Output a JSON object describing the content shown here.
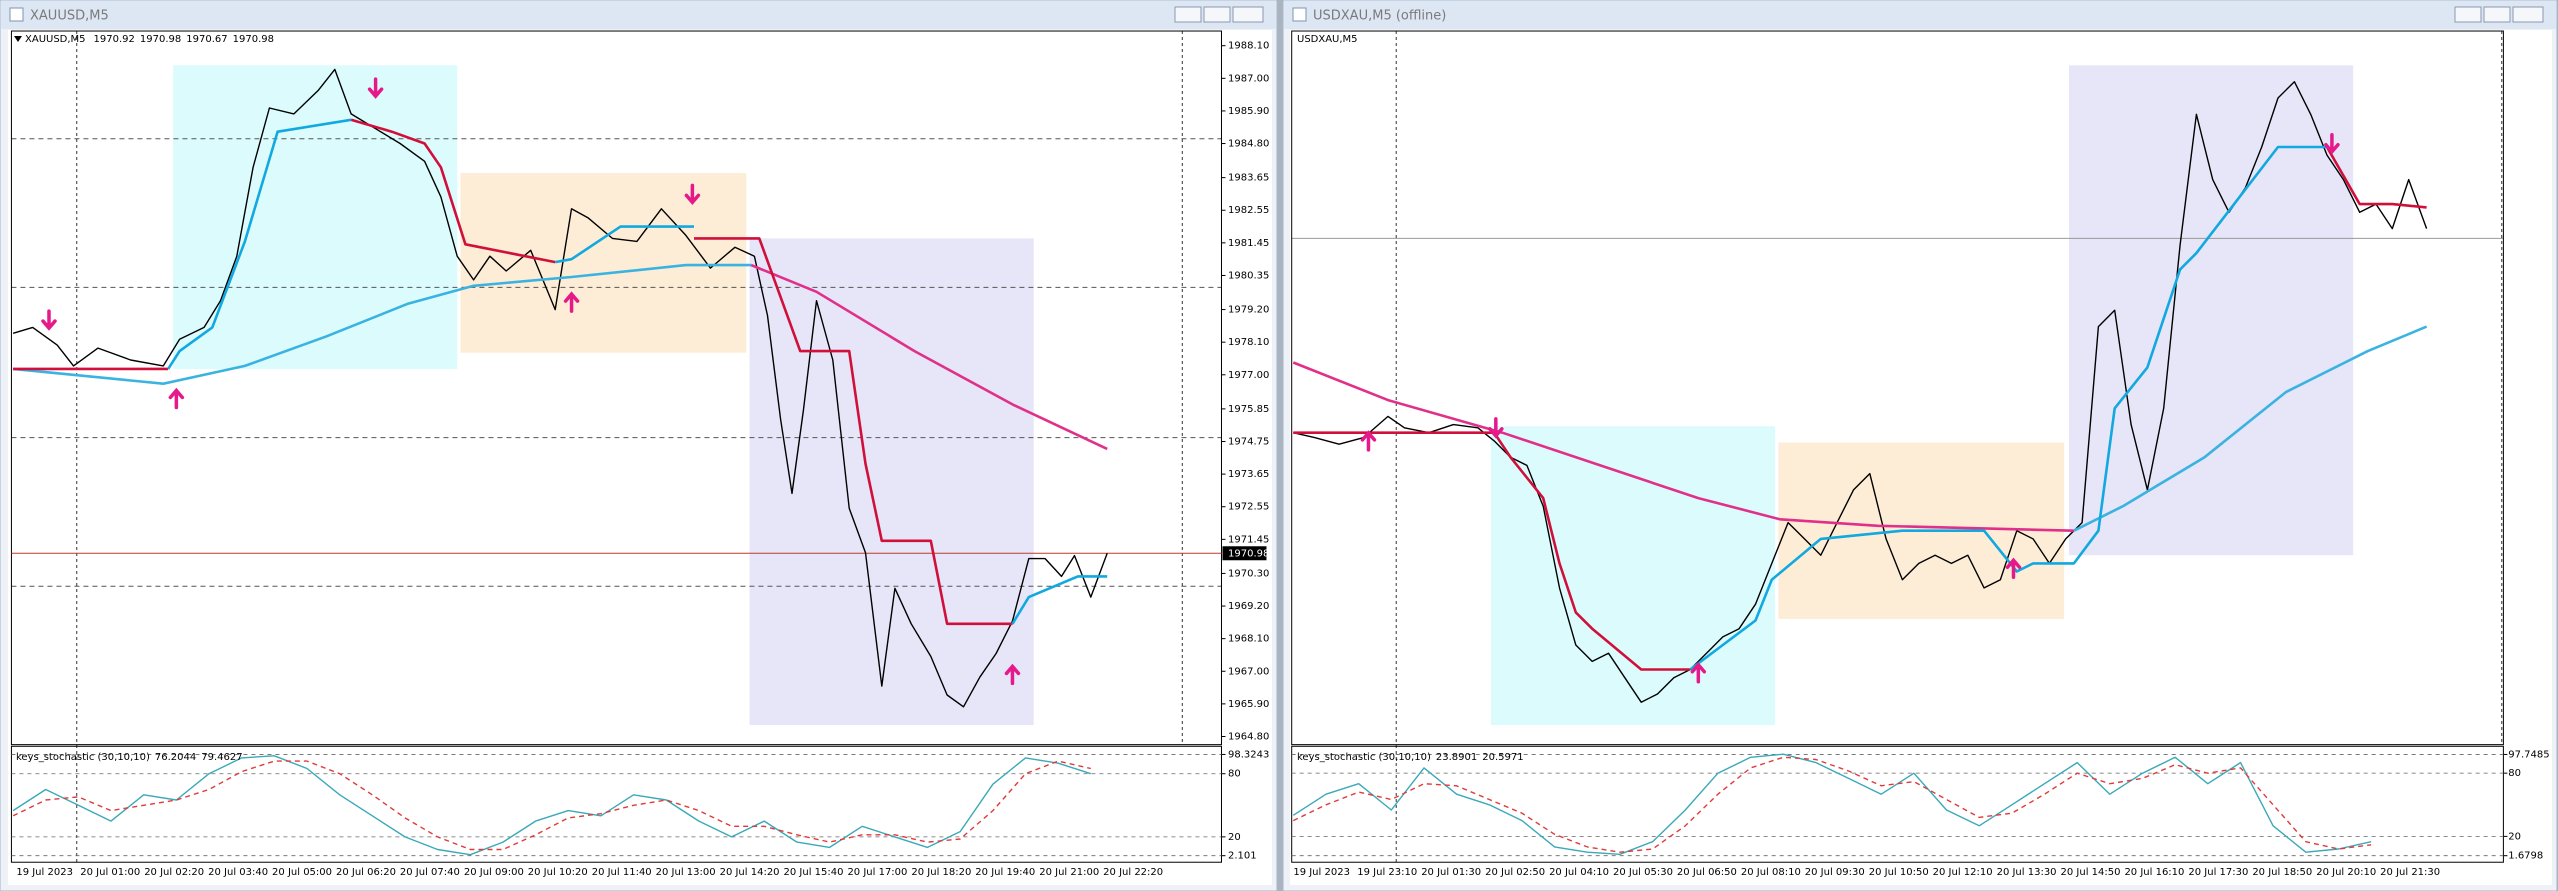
{
  "windows": [
    {
      "title": "XAUUSD,M5"
    },
    {
      "title": "USDXAU,M5 (offline)"
    }
  ],
  "chart_data": [
    {
      "type": "line",
      "symbol": "XAUUSD,M5",
      "ohlc": [
        1970.92,
        1970.98,
        1970.67,
        1970.98
      ],
      "last_price": 1970.98,
      "xlim": [
        0,
        740
      ],
      "ylim": [
        1964.58,
        1988.54
      ],
      "grid": false,
      "yticks": [
        {
          "value": 1988.1,
          "label": "1988.10"
        },
        {
          "value": 1987,
          "label": "1987.00"
        },
        {
          "value": 1985.9,
          "label": "1985.90"
        },
        {
          "value": 1984.8,
          "label": "1984.80"
        },
        {
          "value": 1983.65,
          "label": "1983.65"
        },
        {
          "value": 1982.55,
          "label": "1982.55"
        },
        {
          "value": 1981.45,
          "label": "1981.45"
        },
        {
          "value": 1980.35,
          "label": "1980.35"
        },
        {
          "value": 1979.2,
          "label": "1979.20"
        },
        {
          "value": 1978.1,
          "label": "1978.10"
        },
        {
          "value": 1977,
          "label": "1977.00"
        },
        {
          "value": 1975.85,
          "label": "1975.85"
        },
        {
          "value": 1974.75,
          "label": "1974.75"
        },
        {
          "value": 1973.65,
          "label": "1973.65"
        },
        {
          "value": 1972.55,
          "label": "1972.55"
        },
        {
          "value": 1971.45,
          "label": "1971.45"
        },
        {
          "value": 1970.3,
          "label": "1970.30"
        },
        {
          "value": 1969.2,
          "label": "1969.20"
        },
        {
          "value": 1968.1,
          "label": "1968.10"
        },
        {
          "value": 1967,
          "label": "1967.00"
        },
        {
          "value": 1965.9,
          "label": "1965.90"
        },
        {
          "value": 1964.8,
          "label": "1964.80"
        }
      ],
      "series": [
        {
          "color": "#000000",
          "x": [
            0,
            12,
            27,
            37,
            52,
            72,
            92,
            102,
            117,
            127,
            137,
            147,
            157,
            172,
            187,
            197,
            207,
            222,
            237,
            252,
            262,
            272,
            282,
            292,
            302,
            317,
            332,
            342,
            352,
            367,
            382,
            397,
            412,
            427,
            442,
            454,
            462,
            470,
            477,
            484,
            492,
            502,
            512,
            522,
            532,
            540,
            550,
            562,
            572,
            582,
            592,
            602,
            612,
            622,
            632,
            642,
            650,
            660,
            670
          ],
          "values": [
            1978.4,
            1978.6,
            1978.0,
            1977.3,
            1977.9,
            1977.5,
            1977.3,
            1978.2,
            1978.6,
            1979.5,
            1981,
            1984,
            1986,
            1985.8,
            1986.6,
            1987.3,
            1985.8,
            1985.3,
            1984.8,
            1984.2,
            1983,
            1981,
            1980.2,
            1981,
            1980.5,
            1981.2,
            1979.2,
            1982.6,
            1982.3,
            1981.6,
            1981.5,
            1982.6,
            1981.7,
            1980.6,
            1981.3,
            1981.0,
            1979,
            1975.5,
            1973,
            1975.8,
            1979.5,
            1977.5,
            1972.5,
            1971,
            1966.5,
            1969.8,
            1968.6,
            1967.5,
            1966.2,
            1965.8,
            1966.8,
            1967.6,
            1968.7,
            1970.8,
            1970.8,
            1970.2,
            1970.9,
            1969.5,
            1970.98
          ]
        },
        {
          "color": "#3bb3e0",
          "x": [
            0,
            92,
            142,
            192,
            242,
            282,
            342,
            412,
            452
          ],
          "values": [
            1977.2,
            1976.7,
            1977.3,
            1978.3,
            1979.4,
            1980.0,
            1980.3,
            1980.7,
            1980.7
          ]
        },
        {
          "color": "#e0308a",
          "x": [
            452,
            492,
            552,
            612,
            670
          ],
          "values": [
            1980.7,
            1979.8,
            1977.8,
            1976.0,
            1974.5
          ]
        },
        {
          "color": "#d0103a",
          "x": [
            0,
            95,
            96,
            207,
            232,
            252,
            262,
            277,
            332,
            333,
            417,
            457,
            482,
            512,
            522,
            532,
            562,
            572,
            612
          ],
          "values": [
            1977.2,
            1977.2,
            null,
            1985.6,
            1985.2,
            1984.8,
            1984,
            1981.4,
            1980.8,
            null,
            1981.6,
            1981.6,
            1977.8,
            1977.8,
            1974,
            1971.4,
            1971.4,
            1968.6,
            1968.6
          ]
        },
        {
          "color": "#12a8e0",
          "x": [
            95,
            102,
            122,
            142,
            162,
            207,
            208,
            332,
            342,
            372,
            417,
            418,
            612,
            622,
            652,
            670
          ],
          "values": [
            1977.2,
            1977.8,
            1978.6,
            1981.5,
            1985.2,
            1985.6,
            null,
            1980.8,
            1980.9,
            1982,
            1982,
            null,
            1968.6,
            1969.5,
            1970.2,
            1970.2
          ]
        }
      ]
    },
    {
      "type": "line",
      "indicator": "keys_stochastic (30,10,10)",
      "last_values": [
        76.2044,
        79.4627
      ],
      "xlim": [
        0,
        740
      ],
      "ylim": [
        2.101,
        98.3243
      ],
      "yticks": [
        98.3243,
        80,
        20,
        2.101
      ],
      "grid": true,
      "time_labels": [
        "19 Jul 2023",
        "20 Jul 01:00",
        "20 Jul 02:20",
        "20 Jul 03:40",
        "20 Jul 05:00",
        "20 Jul 06:20",
        "20 Jul 07:40",
        "20 Jul 09:00",
        "20 Jul 10:20",
        "20 Jul 11:40",
        "20 Jul 13:00",
        "20 Jul 14:20",
        "20 Jul 15:40",
        "20 Jul 17:00",
        "20 Jul 18:20",
        "20 Jul 19:40",
        "20 Jul 21:00",
        "20 Jul 22:20"
      ],
      "series": [
        {
          "color": "#3aa9b8",
          "x": [
            0,
            20,
            40,
            60,
            80,
            100,
            120,
            140,
            160,
            180,
            200,
            220,
            240,
            260,
            280,
            300,
            320,
            340,
            360,
            380,
            400,
            420,
            440,
            460,
            480,
            500,
            520,
            540,
            560,
            580,
            600,
            620,
            640,
            660
          ],
          "values": [
            45,
            65,
            50,
            35,
            60,
            55,
            80,
            95,
            97,
            85,
            60,
            40,
            20,
            8,
            3,
            15,
            35,
            45,
            40,
            60,
            55,
            35,
            20,
            35,
            15,
            10,
            30,
            20,
            10,
            25,
            70,
            95,
            90,
            80
          ]
        },
        {
          "color": "#e03a3a",
          "dashed": true,
          "x": [
            0,
            20,
            40,
            60,
            80,
            100,
            120,
            140,
            160,
            180,
            200,
            220,
            240,
            260,
            280,
            300,
            320,
            340,
            360,
            380,
            400,
            420,
            440,
            460,
            480,
            500,
            520,
            540,
            560,
            580,
            600,
            620,
            640,
            660
          ],
          "values": [
            40,
            55,
            58,
            45,
            50,
            55,
            65,
            82,
            92,
            92,
            80,
            60,
            38,
            20,
            8,
            8,
            22,
            38,
            42,
            50,
            55,
            45,
            30,
            30,
            22,
            15,
            22,
            22,
            15,
            18,
            45,
            80,
            92,
            85
          ]
        }
      ]
    },
    {
      "type": "line",
      "symbol": "USDXAU,M5",
      "xlim": [
        0,
        740
      ],
      "ylim": [
        0,
        435
      ],
      "grid": false,
      "yticks": [],
      "series": [
        {
          "color": "#000000",
          "x": [
            0,
            13,
            28,
            43,
            58,
            68,
            83,
            98,
            113,
            123,
            133,
            143,
            153,
            163,
            173,
            183,
            193,
            203,
            213,
            223,
            233,
            243,
            253,
            263,
            273,
            283,
            293,
            303,
            313,
            323,
            333,
            343,
            353,
            363,
            373,
            383,
            393,
            403,
            413,
            423,
            433,
            443,
            453,
            463,
            473,
            483,
            493,
            503,
            513,
            523,
            533,
            543,
            553,
            563,
            573,
            583,
            593,
            603,
            613,
            623,
            633,
            643,
            653,
            663,
            673,
            683,
            694
          ],
          "values": [
            190,
            187,
            183,
            187,
            200,
            193,
            190,
            195,
            193,
            185,
            175,
            170,
            145,
            95,
            60,
            50,
            55,
            40,
            25,
            30,
            40,
            45,
            55,
            65,
            70,
            85,
            110,
            135,
            125,
            115,
            135,
            155,
            165,
            125,
            100,
            110,
            115,
            110,
            115,
            95,
            100,
            130,
            125,
            110,
            125,
            135,
            255,
            265,
            195,
            155,
            205,
            305,
            385,
            345,
            325,
            340,
            365,
            395,
            405,
            385,
            360,
            345,
            325,
            330,
            315,
            345,
            315
          ]
        },
        {
          "color": "#e0308a",
          "x": [
            0,
            58,
            128,
            188,
            248,
            298,
            358,
            478
          ],
          "values": [
            233,
            210,
            190,
            170,
            150,
            137,
            133,
            130
          ]
        },
        {
          "color": "#3bb3e0",
          "x": [
            478,
            508,
            558,
            608,
            658,
            694
          ],
          "values": [
            130,
            145,
            175,
            215,
            240,
            255
          ]
        },
        {
          "color": "#d0103a",
          "x": [
            0,
            123,
            133,
            153,
            163,
            173,
            183,
            213,
            243,
            244,
            633,
            653,
            673,
            694
          ],
          "values": [
            190,
            190,
            175,
            150,
            110,
            80,
            70,
            45,
            45,
            null,
            365,
            330,
            330,
            328
          ]
        },
        {
          "color": "#12a8e0",
          "x": [
            243,
            263,
            283,
            293,
            323,
            373,
            423,
            443,
            453,
            478,
            493,
            503,
            523,
            543,
            553,
            603,
            633
          ],
          "values": [
            45,
            60,
            75,
            100,
            125,
            130,
            130,
            105,
            110,
            110,
            130,
            205,
            230,
            290,
            300,
            365,
            365
          ]
        }
      ]
    },
    {
      "type": "line",
      "indicator": "keys_stochastic (30,10,10)",
      "last_values": [
        23.8901,
        20.5971
      ],
      "xlim": [
        0,
        740
      ],
      "ylim": [
        1.6798,
        97.7485
      ],
      "yticks": [
        97.7485,
        80,
        20,
        1.6798
      ],
      "grid": true,
      "time_labels": [
        "19 Jul 2023",
        "19 Jul 23:10",
        "20 Jul 01:30",
        "20 Jul 02:50",
        "20 Jul 04:10",
        "20 Jul 05:30",
        "20 Jul 06:50",
        "20 Jul 08:10",
        "20 Jul 09:30",
        "20 Jul 10:50",
        "20 Jul 12:10",
        "20 Jul 13:30",
        "20 Jul 14:50",
        "20 Jul 16:10",
        "20 Jul 17:30",
        "20 Jul 18:50",
        "20 Jul 20:10",
        "20 Jul 21:30"
      ],
      "series": [
        {
          "color": "#3aa9b8",
          "x": [
            0,
            20,
            40,
            60,
            80,
            100,
            120,
            140,
            160,
            180,
            200,
            220,
            240,
            260,
            280,
            300,
            320,
            340,
            360,
            380,
            400,
            420,
            440,
            460,
            480,
            500,
            520,
            540,
            560,
            580,
            600,
            620,
            640,
            660
          ],
          "values": [
            40,
            60,
            70,
            45,
            85,
            60,
            50,
            35,
            10,
            5,
            3,
            15,
            45,
            80,
            95,
            98,
            90,
            75,
            60,
            80,
            45,
            30,
            50,
            70,
            90,
            60,
            80,
            95,
            70,
            90,
            30,
            5,
            8,
            15
          ]
        },
        {
          "color": "#e03a3a",
          "dashed": true,
          "x": [
            0,
            20,
            40,
            60,
            80,
            100,
            120,
            140,
            160,
            180,
            200,
            220,
            240,
            260,
            280,
            300,
            320,
            340,
            360,
            380,
            400,
            420,
            440,
            460,
            480,
            500,
            520,
            540,
            560,
            580,
            600,
            620,
            640,
            660
          ],
          "values": [
            35,
            50,
            62,
            55,
            70,
            68,
            55,
            42,
            22,
            10,
            5,
            8,
            30,
            60,
            85,
            95,
            93,
            82,
            68,
            72,
            55,
            38,
            42,
            60,
            80,
            70,
            75,
            88,
            80,
            85,
            50,
            15,
            8,
            12
          ]
        }
      ]
    }
  ]
}
